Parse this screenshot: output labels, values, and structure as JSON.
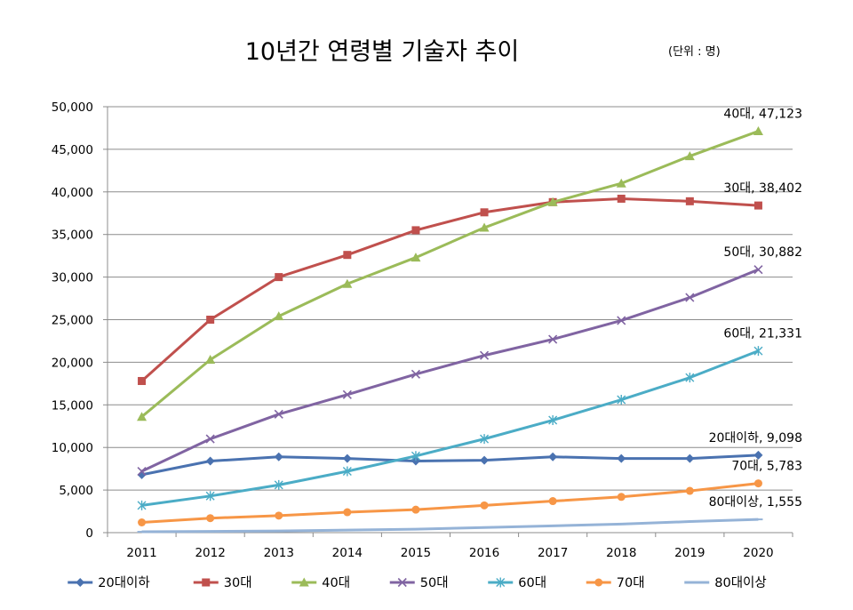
{
  "chart_data": {
    "type": "line",
    "title": "10년간 연령별 기술자 추이",
    "unit_note": "(단위 : 명)",
    "xlabel": "",
    "ylabel": "",
    "categories": [
      "2011",
      "2012",
      "2013",
      "2014",
      "2015",
      "2016",
      "2017",
      "2018",
      "2019",
      "2020"
    ],
    "ylim": [
      0,
      50000
    ],
    "yticks": [
      0,
      5000,
      10000,
      15000,
      20000,
      25000,
      30000,
      35000,
      40000,
      45000,
      50000
    ],
    "ytick_labels": [
      "0",
      "5,000",
      "10,000",
      "15,000",
      "20,000",
      "25,000",
      "30,000",
      "35,000",
      "40,000",
      "45,000",
      "50,000"
    ],
    "grid": "horizontal",
    "legend_position": "bottom",
    "series": [
      {
        "name": "20대이하",
        "color": "#4a72b0",
        "marker": "diamond",
        "values": [
          6800,
          8400,
          8900,
          8700,
          8400,
          8500,
          8900,
          8700,
          8700,
          9098
        ],
        "end_label": "20대이하, 9,098"
      },
      {
        "name": "30대",
        "color": "#c0504d",
        "marker": "square",
        "values": [
          17800,
          25000,
          30000,
          32600,
          35500,
          37600,
          38800,
          39200,
          38900,
          38402
        ],
        "end_label": "30대, 38,402"
      },
      {
        "name": "40대",
        "color": "#9bbb59",
        "marker": "triangle",
        "values": [
          13600,
          20300,
          25400,
          29200,
          32300,
          35800,
          38800,
          41000,
          44200,
          47123
        ],
        "end_label": "40대, 47,123"
      },
      {
        "name": "50대",
        "color": "#8064a2",
        "marker": "x",
        "values": [
          7200,
          11000,
          13900,
          16200,
          18600,
          20800,
          22700,
          24900,
          27600,
          30882
        ],
        "end_label": "50대, 30,882"
      },
      {
        "name": "60대",
        "color": "#4bacc6",
        "marker": "star",
        "values": [
          3200,
          4300,
          5600,
          7200,
          9000,
          11000,
          13200,
          15600,
          18200,
          21331
        ],
        "end_label": "60대, 21,331"
      },
      {
        "name": "70대",
        "color": "#f79646",
        "marker": "circle",
        "values": [
          1200,
          1700,
          2000,
          2400,
          2700,
          3200,
          3700,
          4200,
          4900,
          5783
        ],
        "end_label": "70대, 5,783"
      },
      {
        "name": "80대이상",
        "color": "#95b3d7",
        "marker": "dash",
        "values": [
          100,
          150,
          200,
          300,
          400,
          600,
          800,
          1000,
          1300,
          1555
        ],
        "end_label": "80대이상, 1,555"
      }
    ]
  }
}
